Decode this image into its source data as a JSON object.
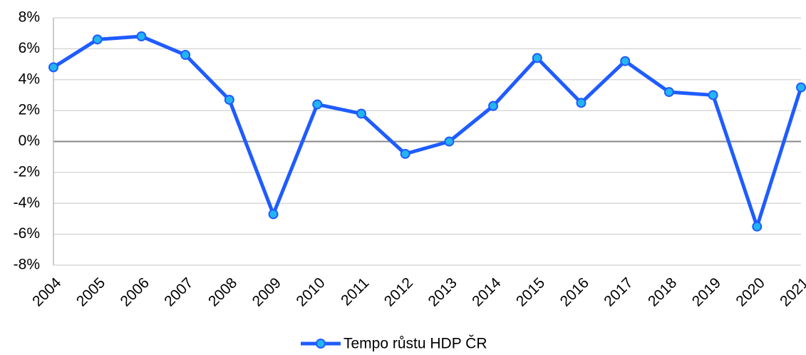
{
  "chart_data": {
    "type": "line",
    "categories": [
      "2004",
      "2005",
      "2006",
      "2007",
      "2008",
      "2009",
      "2010",
      "2011",
      "2012",
      "2013",
      "2014",
      "2015",
      "2016",
      "2017",
      "2018",
      "2019",
      "2020",
      "2021"
    ],
    "series": [
      {
        "name": "Tempo růstu HDP ČR",
        "color": "#1f5cff",
        "marker_color": "#22b5f0",
        "values": [
          4.8,
          6.6,
          6.8,
          5.6,
          2.7,
          -4.7,
          2.4,
          1.8,
          -0.8,
          0.0,
          2.3,
          5.4,
          2.5,
          5.2,
          3.2,
          3.0,
          -5.5,
          3.5
        ]
      }
    ],
    "ylim": [
      -8,
      8
    ],
    "yticks": [
      {
        "value": -8,
        "label": "-8%"
      },
      {
        "value": -6,
        "label": "-6%"
      },
      {
        "value": -4,
        "label": "-4%"
      },
      {
        "value": -2,
        "label": "-2%"
      },
      {
        "value": 0,
        "label": "0%"
      },
      {
        "value": 2,
        "label": "2%"
      },
      {
        "value": 4,
        "label": "4%"
      },
      {
        "value": 6,
        "label": "6%"
      },
      {
        "value": 8,
        "label": "8%"
      }
    ],
    "grid": true,
    "legend": "bottom"
  }
}
